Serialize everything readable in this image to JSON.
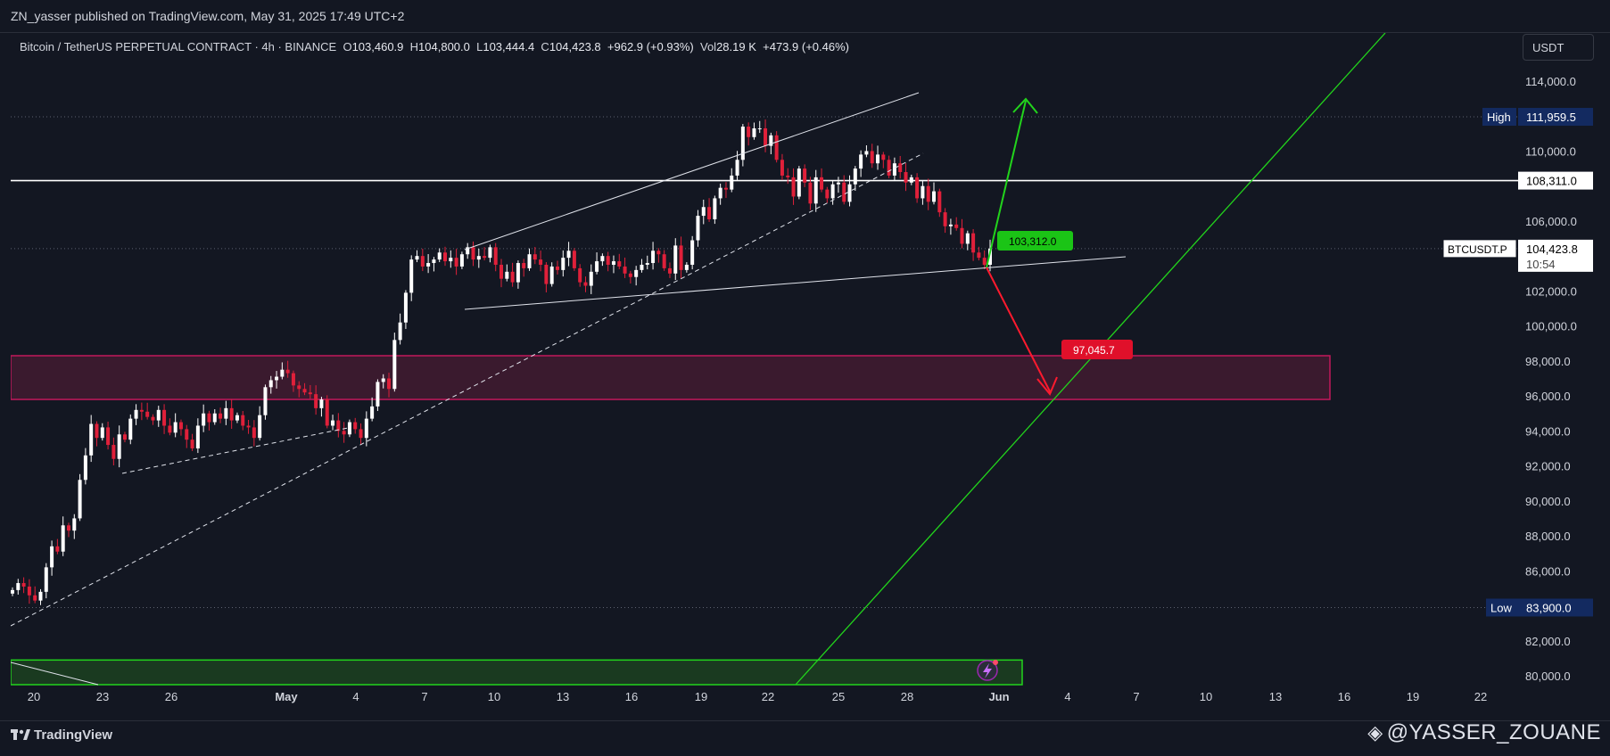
{
  "header": {
    "published_text": "ZN_yasser published on TradingView.com, May 31, 2025 17:49 UTC+2"
  },
  "legend": {
    "symbol_text": "Bitcoin / TetherUS PERPETUAL CONTRACT · 4h · BINANCE",
    "o_label": "O",
    "o_value": "103,460.9",
    "h_label": "H",
    "h_value": "104,800.0",
    "l_label": "L",
    "l_value": "103,444.4",
    "c_label": "C",
    "c_value": "104,423.8",
    "change": "+962.9 (+0.93%)",
    "vol_label": "Vol",
    "vol_value": "28.19 K",
    "vol_change": "+473.9 (+0.46%)"
  },
  "currency_button": "USDT",
  "footer": {
    "logo_text": "TradingView",
    "author": "@YASSER_ZOUANE"
  },
  "colors": {
    "background": "#131722",
    "up": "#ffffff",
    "down": "#e0203a",
    "green": "#22d41c",
    "red": "#ff1a2e",
    "zone_border": "#c2185b",
    "zone_fill": "#3a1a2e",
    "bottom_zone_fill": "#1a3a20"
  },
  "chart_data": {
    "type": "candlestick",
    "symbol": "BTCUSDT.P",
    "timeframe": "4h",
    "y_axis": {
      "range": [
        79400,
        116000
      ],
      "ticks": [
        "114,000.0",
        "110,000.0",
        "106,000.0",
        "102,000.0",
        "100,000.0",
        "98,000.0",
        "96,000.0",
        "94,000.0",
        "92,000.0",
        "90,000.0",
        "88,000.0",
        "86,000.0",
        "82,000.0",
        "80,000.0"
      ],
      "tick_values": [
        114000,
        110000,
        106000,
        102000,
        100000,
        98000,
        96000,
        94000,
        92000,
        90000,
        88000,
        86000,
        82000,
        80000
      ]
    },
    "x_axis": {
      "ticks": [
        "20",
        "23",
        "26",
        "May",
        "4",
        "7",
        "10",
        "13",
        "16",
        "19",
        "22",
        "25",
        "28",
        "Jun",
        "4",
        "7",
        "10",
        "13",
        "16",
        "19",
        "22"
      ]
    },
    "price_labels": {
      "high_label": "High",
      "high_value": "111,959.5",
      "high": 111959.5,
      "low_label": "Low",
      "low_value": "83,900.0",
      "low": 83900,
      "resistance_value": "108,311.0",
      "resistance": 108311,
      "last_symbol": "BTCUSDT.P",
      "last_value": "104,423.8",
      "last": 104423.8,
      "countdown": "10:54"
    },
    "targets": {
      "up_label": "103,312.0",
      "down_label": "97,045.7"
    },
    "zones": {
      "demand_top": 98300,
      "demand_bottom": 95800,
      "bottom_zone_top": 80900
    },
    "closes": [
      84900,
      85300,
      85100,
      84600,
      84300,
      84800,
      86200,
      87400,
      87100,
      88600,
      88300,
      89000,
      91200,
      92600,
      94400,
      93600,
      94200,
      93200,
      92400,
      93800,
      93500,
      94700,
      95200,
      95100,
      94800,
      94600,
      95200,
      94300,
      93900,
      94500,
      94100,
      93500,
      93000,
      94300,
      95000,
      94500,
      95000,
      94700,
      95300,
      94600,
      94900,
      94300,
      94200,
      93600,
      94900,
      96500,
      96900,
      97100,
      97500,
      97300,
      96600,
      96400,
      96200,
      96100,
      95300,
      95800,
      94300,
      94600,
      94000,
      93800,
      94500,
      94100,
      93600,
      94700,
      95400,
      96800,
      97000,
      96400,
      99200,
      100200,
      101900,
      103800,
      104000,
      103400,
      103600,
      103800,
      104200,
      103700,
      103900,
      103400,
      104100,
      104500,
      103800,
      104000,
      103900,
      104500,
      103500,
      102700,
      103100,
      102500,
      103600,
      103300,
      104100,
      103800,
      103500,
      102400,
      103400,
      103200,
      103900,
      104300,
      103300,
      102500,
      102300,
      103100,
      103700,
      104000,
      103500,
      103700,
      103400,
      103000,
      102800,
      103200,
      103500,
      103600,
      104300,
      104100,
      103300,
      103000,
      104600,
      103200,
      103500,
      104900,
      106300,
      106800,
      106100,
      107300,
      107900,
      107800,
      108600,
      109500,
      111400,
      110800,
      111300,
      111300,
      110300,
      110900,
      109500,
      108600,
      108500,
      107400,
      109000,
      108200,
      107000,
      108500,
      107800,
      107300,
      108100,
      108200,
      107100,
      108100,
      109000,
      109800,
      110000,
      109300,
      109800,
      109500,
      108600,
      109300,
      108800,
      108200,
      108500,
      107300,
      108000,
      107100,
      107700,
      106500,
      105700,
      105800,
      105600,
      104700,
      105300,
      104200,
      103900,
      103500,
      104423.8
    ]
  }
}
